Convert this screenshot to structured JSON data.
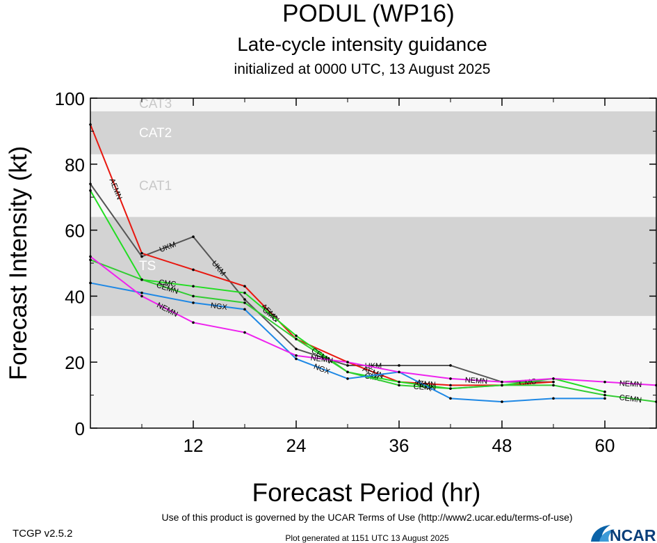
{
  "title": "PODUL (WP16)",
  "subtitle": "Late-cycle intensity guidance",
  "init_line": "initialized at 0000 UTC, 13 August 2025",
  "footer": {
    "version": "TCGP v2.5.2",
    "terms": "Use of this product is governed by the UCAR Terms of Use (http://www2.ucar.edu/terms-of-use)",
    "generated": "Plot generated at 1151 UTC   13 August 2025",
    "logo": "NCAR"
  },
  "colors": {
    "AEMN": "#e8170f",
    "UKM": "#555555",
    "CMC": "#22dd22",
    "CEMN": "#33cc33",
    "NGX": "#1e88e5",
    "NEMN": "#ee22ee",
    "band": "#d3d3d3",
    "plot_bg": "#f7f7f7"
  },
  "chart_data": {
    "type": "line",
    "title": "PODUL (WP16)",
    "subtitle": "Late-cycle intensity guidance",
    "xlabel": "Forecast Period (hr)",
    "ylabel": "Forecast Intensity (kt)",
    "xlim": [
      0,
      66
    ],
    "ylim": [
      0,
      100
    ],
    "xticks": [
      12,
      24,
      36,
      48,
      60
    ],
    "yticks": [
      0,
      20,
      40,
      60,
      80,
      100
    ],
    "grid": false,
    "bands": [
      {
        "label": "TS",
        "from": 34,
        "to": 64,
        "shaded": true
      },
      {
        "label": "CAT1",
        "from": 64,
        "to": 83,
        "shaded": false
      },
      {
        "label": "CAT2",
        "from": 83,
        "to": 96,
        "shaded": true
      },
      {
        "label": "CAT3",
        "from": 96,
        "to": 100,
        "shaded": false
      }
    ],
    "series": [
      {
        "name": "UKM",
        "x": [
          0,
          6,
          12,
          18,
          24,
          30,
          36,
          42,
          48,
          54
        ],
        "y": [
          74,
          52,
          58,
          39,
          24,
          19,
          19,
          19,
          14,
          14
        ]
      },
      {
        "name": "AEMN",
        "x": [
          0,
          6,
          12,
          18,
          24,
          30,
          36,
          42,
          48,
          54
        ],
        "y": [
          92,
          53,
          48,
          43,
          27,
          20,
          14,
          13,
          13,
          14
        ]
      },
      {
        "name": "CMC",
        "x": [
          0,
          6,
          12,
          18,
          24,
          30,
          36,
          42,
          48,
          54,
          60
        ],
        "y": [
          72,
          45,
          43,
          41,
          28,
          17,
          14,
          12,
          13,
          15,
          11
        ]
      },
      {
        "name": "CEMN",
        "x": [
          0,
          6,
          12,
          18,
          24,
          30,
          36,
          42,
          48,
          54,
          60,
          66
        ],
        "y": [
          51,
          45,
          40,
          38,
          27,
          17,
          13,
          12,
          13,
          13,
          10,
          8
        ]
      },
      {
        "name": "NGX",
        "x": [
          0,
          6,
          12,
          18,
          24,
          30,
          36,
          42,
          48,
          54,
          60
        ],
        "y": [
          44,
          41,
          38,
          36,
          21,
          15,
          17,
          9,
          8,
          9,
          9
        ]
      },
      {
        "name": "NEMN",
        "x": [
          0,
          6,
          12,
          18,
          24,
          30,
          36,
          42,
          48,
          54,
          60,
          66
        ],
        "y": [
          52,
          40,
          32,
          29,
          22,
          20,
          17,
          15,
          14,
          15,
          14,
          13
        ]
      }
    ]
  }
}
